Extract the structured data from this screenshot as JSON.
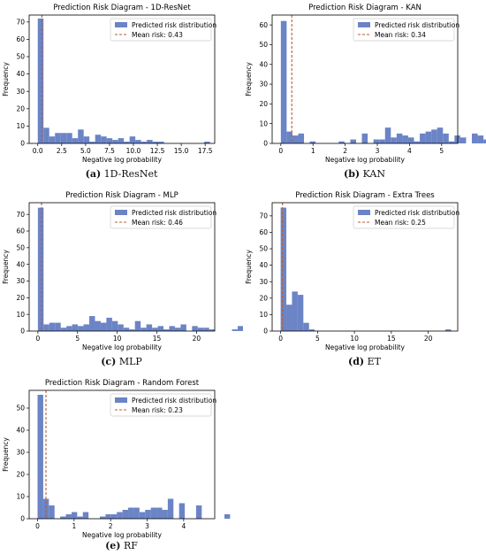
{
  "chart_data": [
    {
      "type": "bar",
      "title": "Prediction Risk Diagram - 1D-ResNet",
      "xlabel": "Negative log probability",
      "ylabel": "Frequency",
      "xlim": [
        -0.9,
        18.5
      ],
      "ylim": [
        0,
        74
      ],
      "xticks": [
        0.0,
        2.5,
        5.0,
        7.5,
        10.0,
        12.5,
        15.0,
        17.5
      ],
      "xtick_labels": [
        "0.0",
        "2.5",
        "5.0",
        "7.5",
        "10.0",
        "12.5",
        "15.0",
        "17.5"
      ],
      "yticks": [
        0,
        10,
        20,
        30,
        40,
        50,
        60,
        70
      ],
      "bin_start": 0.0,
      "bin_width": 0.6,
      "values": [
        72,
        9,
        4,
        6,
        6,
        6,
        3,
        8,
        4,
        1,
        5,
        4,
        3,
        2,
        3,
        1,
        4,
        2,
        1,
        2,
        1,
        1,
        0,
        0,
        0,
        0,
        0,
        0,
        0,
        1
      ],
      "mean": 0.43,
      "legend": {
        "bar_label": "Predicted risk distribution",
        "line_label": "Mean risk: 0.43",
        "position": "top-right"
      },
      "caption": {
        "letter": "(a)",
        "text": "1D-ResNet"
      }
    },
    {
      "type": "bar",
      "title": "Prediction Risk Diagram - KAN",
      "xlabel": "Negative log probability",
      "ylabel": "Frequency",
      "xlim": [
        -0.27,
        5.5
      ],
      "ylim": [
        0,
        65
      ],
      "xticks": [
        0,
        1,
        2,
        3,
        4,
        5
      ],
      "xtick_labels": [
        "0",
        "1",
        "2",
        "3",
        "4",
        "5"
      ],
      "yticks": [
        0,
        10,
        20,
        30,
        40,
        50,
        60
      ],
      "bin_start": 0.0,
      "bin_width": 0.18,
      "values": [
        62,
        6,
        4,
        5,
        0,
        1,
        0,
        0,
        0,
        0,
        1,
        0,
        2,
        0,
        5,
        0,
        2,
        2,
        8,
        3,
        5,
        4,
        3,
        1,
        5,
        6,
        7,
        8,
        5,
        1,
        4,
        3,
        0,
        5,
        4,
        2,
        0,
        1,
        0,
        2,
        0,
        1
      ],
      "mean": 0.34,
      "legend": {
        "bar_label": "Predicted risk distribution",
        "line_label": "Mean risk: 0.34",
        "position": "top-right"
      },
      "caption": {
        "letter": "(b)",
        "text": "KAN"
      }
    },
    {
      "type": "bar",
      "title": "Prediction Risk Diagram - MLP",
      "xlabel": "Negative log probability",
      "ylabel": "Frequency",
      "xlim": [
        -1.1,
        22.3
      ],
      "ylim": [
        0,
        77
      ],
      "xticks": [
        0,
        5,
        10,
        15,
        20
      ],
      "xtick_labels": [
        "0",
        "5",
        "10",
        "15",
        "20"
      ],
      "yticks": [
        0,
        10,
        20,
        30,
        40,
        50,
        60,
        70
      ],
      "bin_start": 0.0,
      "bin_width": 0.72,
      "values": [
        74,
        4,
        5,
        5,
        2,
        3,
        4,
        3,
        4,
        9,
        6,
        5,
        8,
        6,
        4,
        2,
        1,
        6,
        2,
        4,
        2,
        3,
        1,
        3,
        2,
        4,
        0,
        3,
        2,
        2,
        1,
        0,
        0,
        0,
        1,
        3,
        0,
        0,
        0,
        0,
        0,
        1,
        0,
        0,
        0,
        0,
        0,
        0,
        0,
        1
      ],
      "mean": 0.46,
      "legend": {
        "bar_label": "Predicted risk distribution",
        "line_label": "Mean risk: 0.46",
        "position": "top-right"
      },
      "caption": {
        "letter": "(c)",
        "text": "MLP"
      }
    },
    {
      "type": "bar",
      "title": "Prediction Risk Diagram - Extra Trees",
      "xlabel": "Negative log probability",
      "ylabel": "Frequency",
      "xlim": [
        -1.15,
        24.0
      ],
      "ylim": [
        0,
        78
      ],
      "xticks": [
        0,
        5,
        10,
        15,
        20
      ],
      "xtick_labels": [
        "0",
        "5",
        "10",
        "15",
        "20"
      ],
      "yticks": [
        0,
        10,
        20,
        30,
        40,
        50,
        60,
        70
      ],
      "bin_start": 0.0,
      "bin_width": 0.77,
      "values": [
        75,
        16,
        24,
        22,
        5,
        1,
        0,
        0,
        0,
        0,
        0,
        0,
        0,
        0,
        0,
        0,
        0,
        0,
        0,
        0,
        0,
        0,
        0,
        0,
        0,
        0,
        0,
        0,
        0,
        1
      ],
      "mean": 0.25,
      "legend": {
        "bar_label": "Predicted risk distribution",
        "line_label": "Mean risk: 0.25",
        "position": "top-right"
      },
      "caption": {
        "letter": "(d)",
        "text": "ET"
      }
    },
    {
      "type": "bar",
      "title": "Prediction Risk Diagram - Random Forest",
      "xlabel": "Negative log probability",
      "ylabel": "Frequency",
      "xlim": [
        -0.23,
        4.85
      ],
      "ylim": [
        0,
        58
      ],
      "xticks": [
        0,
        1,
        2,
        3,
        4
      ],
      "xtick_labels": [
        "0",
        "1",
        "2",
        "3",
        "4"
      ],
      "yticks": [
        0,
        10,
        20,
        30,
        40,
        50
      ],
      "bin_start": 0.0,
      "bin_width": 0.155,
      "values": [
        56,
        9,
        6,
        0,
        1,
        2,
        3,
        1,
        3,
        0,
        0,
        1,
        2,
        2,
        3,
        4,
        5,
        5,
        3,
        4,
        5,
        5,
        4,
        9,
        0,
        7,
        0,
        0,
        6,
        0,
        0,
        0,
        0,
        2
      ],
      "mean": 0.23,
      "legend": {
        "bar_label": "Predicted risk distribution",
        "line_label": "Mean risk: 0.23",
        "position": "top-right"
      },
      "caption": {
        "letter": "(e)",
        "text": "RF"
      }
    }
  ],
  "colors": {
    "bar": "#6b84c6",
    "mean_line": "#b85c32",
    "axis": "#000000"
  }
}
